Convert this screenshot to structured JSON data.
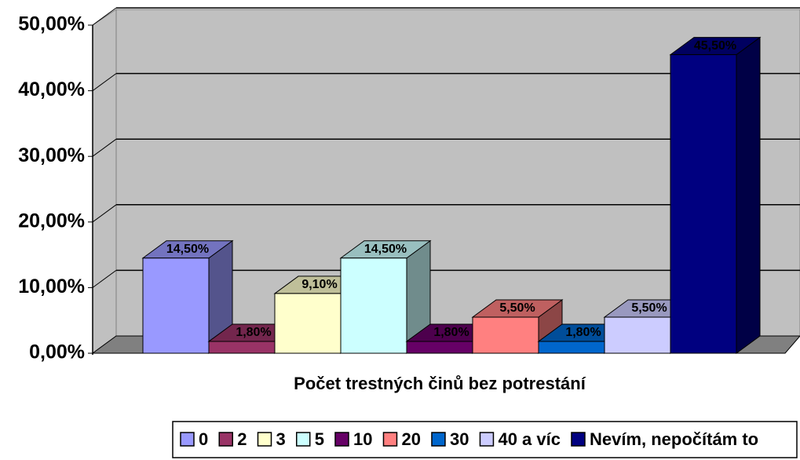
{
  "chart_data": {
    "type": "bar3d",
    "x_label": "Počet trestných činů bez potrestání",
    "ylim": [
      0,
      50
    ],
    "yticks": [
      {
        "value": 0,
        "label": "0,00%"
      },
      {
        "value": 10,
        "label": "10,00%"
      },
      {
        "value": 20,
        "label": "20,00%"
      },
      {
        "value": 30,
        "label": "30,00%"
      },
      {
        "value": 40,
        "label": "40,00%"
      },
      {
        "value": 50,
        "label": "50,00%"
      }
    ],
    "grid": true,
    "legend": "bottom",
    "series": [
      {
        "name": "0",
        "color": "#9999ff",
        "values": [
          14.5
        ],
        "value_labels": [
          "14,50%"
        ]
      },
      {
        "name": "2",
        "color": "#993366",
        "values": [
          1.8
        ],
        "value_labels": [
          "1,80%"
        ]
      },
      {
        "name": "3",
        "color": "#ffffcc",
        "values": [
          9.1
        ],
        "value_labels": [
          "9,10%"
        ]
      },
      {
        "name": "5",
        "color": "#ccffff",
        "values": [
          14.5
        ],
        "value_labels": [
          "14,50%"
        ]
      },
      {
        "name": "10",
        "color": "#660066",
        "values": [
          1.8
        ],
        "value_labels": [
          "1,80%"
        ]
      },
      {
        "name": "20",
        "color": "#ff8080",
        "values": [
          5.5
        ],
        "value_labels": [
          "5,50%"
        ]
      },
      {
        "name": "30",
        "color": "#0066cc",
        "values": [
          1.8
        ],
        "value_labels": [
          "1,80%"
        ]
      },
      {
        "name": "40 a víc",
        "color": "#ccccff",
        "values": [
          5.5
        ],
        "value_labels": [
          "5,50%"
        ]
      },
      {
        "name": "Nevím, nepočítám to",
        "color": "#000080",
        "values": [
          45.5
        ],
        "value_labels": [
          "45,50%"
        ]
      }
    ]
  }
}
